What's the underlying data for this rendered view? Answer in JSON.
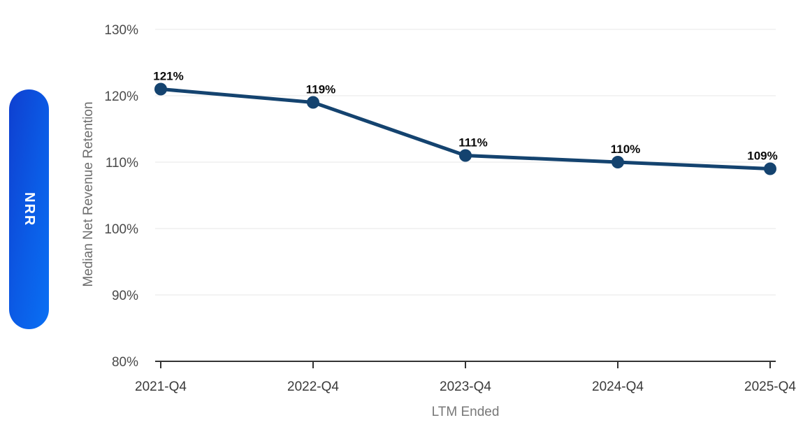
{
  "pill": {
    "label": "NRR",
    "gradient_start": "#0f3fd0",
    "gradient_end": "#0a70f4"
  },
  "chart_data": {
    "type": "line",
    "title": "",
    "x": [
      "2021-Q4",
      "2022-Q4",
      "2023-Q4",
      "2024-Q4",
      "2025-Q4"
    ],
    "series": [
      {
        "name": "Median Net Revenue Retention",
        "values": [
          121,
          119,
          111,
          110,
          109
        ]
      }
    ],
    "data_labels": [
      "121%",
      "119%",
      "111%",
      "110%",
      "109%"
    ],
    "xlabel": "LTM Ended",
    "ylabel": "Median Net Revenue Retention",
    "ylim": [
      80,
      130
    ],
    "yticks": [
      80,
      90,
      100,
      110,
      120,
      130
    ],
    "ytick_labels": [
      "80%",
      "90%",
      "100%",
      "110%",
      "120%",
      "130%"
    ],
    "grid": "horizontal",
    "legend": "none",
    "line_color": "#14436f",
    "point_color": "#14436f",
    "grid_color": "#e7e7e7",
    "axis_color": "#333333"
  }
}
